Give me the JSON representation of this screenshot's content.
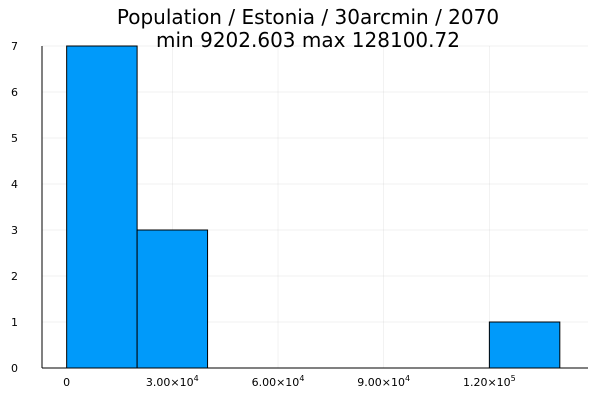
{
  "chart_data": {
    "type": "bar",
    "title_line1": "Population / Estonia / 30arcmin / 2070",
    "title_line2": "min 9202.603  max 128100.72",
    "bins": [
      {
        "x0": 0,
        "x1": 20000,
        "count": 7
      },
      {
        "x0": 20000,
        "x1": 40000,
        "count": 3
      },
      {
        "x0": 40000,
        "x1": 60000,
        "count": 0
      },
      {
        "x0": 60000,
        "x1": 80000,
        "count": 0
      },
      {
        "x0": 80000,
        "x1": 100000,
        "count": 0
      },
      {
        "x0": 100000,
        "x1": 120000,
        "count": 0
      },
      {
        "x0": 120000,
        "x1": 140000,
        "count": 1
      }
    ],
    "xlim": [
      -7000,
      148000
    ],
    "ylim": [
      0,
      7
    ],
    "xticks": [
      {
        "value": 0,
        "mant": "0",
        "exp": ""
      },
      {
        "value": 30000,
        "mant": "3.00×10",
        "exp": "4"
      },
      {
        "value": 60000,
        "mant": "6.00×10",
        "exp": "4"
      },
      {
        "value": 90000,
        "mant": "9.00×10",
        "exp": "4"
      },
      {
        "value": 120000,
        "mant": "1.20×10",
        "exp": "5"
      }
    ],
    "yticks": [
      0,
      1,
      2,
      3,
      4,
      5,
      6,
      7
    ],
    "xlabel": "",
    "ylabel": "",
    "grid": true,
    "legend": "none",
    "bar_color": "#009AFA"
  }
}
